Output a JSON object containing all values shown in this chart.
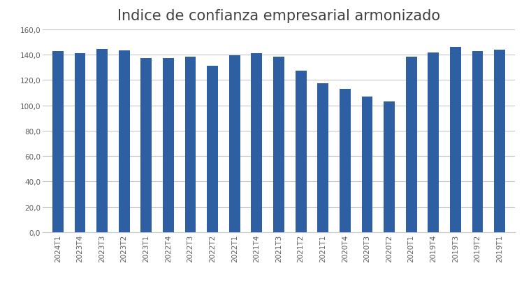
{
  "title": "Indice de confianza empresarial armonizado",
  "categories": [
    "2024T1",
    "2023T4",
    "2023T3",
    "2023T2",
    "2023T1",
    "2022T4",
    "2022T3",
    "2022T2",
    "2022T1",
    "2021T4",
    "2021T3",
    "2021T2",
    "2021T1",
    "2020T4",
    "2020T3",
    "2020T2",
    "2020T1",
    "2019T4",
    "2019T3",
    "2019T2",
    "2019T1"
  ],
  "values": [
    142.5,
    141.0,
    144.5,
    143.5,
    137.5,
    137.5,
    138.5,
    131.0,
    139.5,
    141.0,
    138.5,
    127.5,
    117.5,
    113.0,
    107.0,
    103.0,
    138.5,
    141.5,
    146.0,
    142.5,
    144.0
  ],
  "bar_color": "#2E5FA3",
  "ylim": [
    0,
    160
  ],
  "ytick_step": 20,
  "background_color": "#ffffff",
  "plot_bg_color": "#ffffff",
  "grid_color": "#c8c8c8",
  "title_fontsize": 15,
  "tick_fontsize": 7.5,
  "title_color": "#404040",
  "tick_color": "#606060"
}
